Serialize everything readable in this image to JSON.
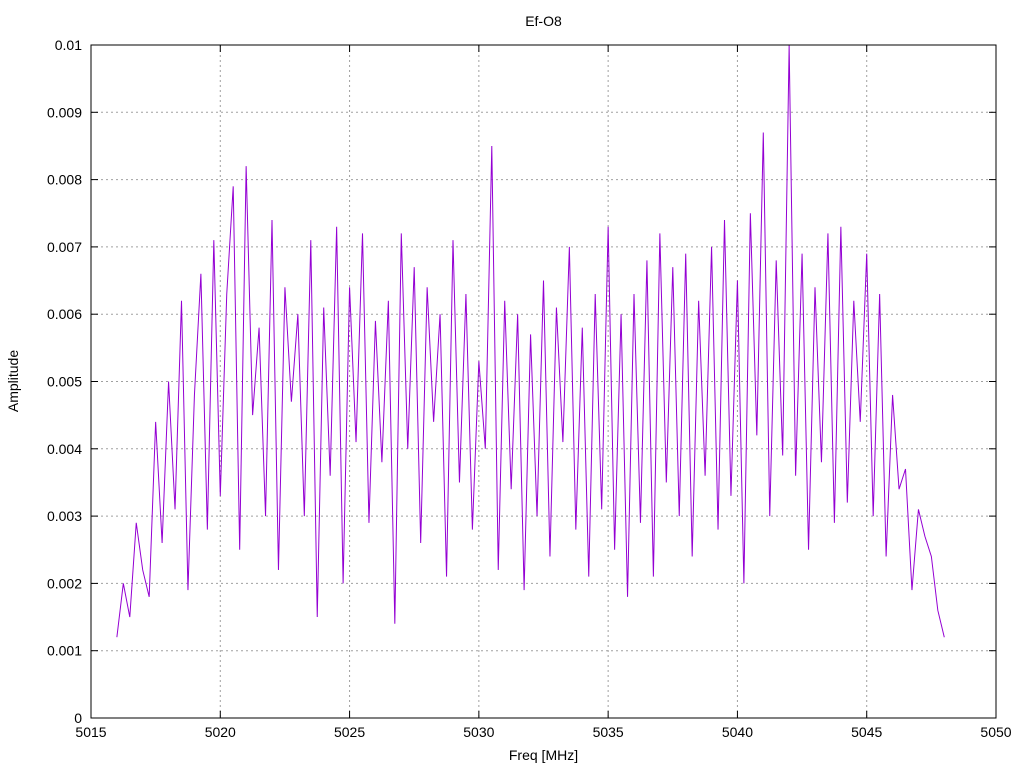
{
  "chart_data": {
    "type": "line",
    "title": "Ef-O8",
    "xlabel": "Freq [MHz]",
    "ylabel": "Amplitude",
    "xlim": [
      5015,
      5050
    ],
    "ylim": [
      0,
      0.01
    ],
    "x_ticks": [
      "5015",
      "5020",
      "5025",
      "5030",
      "5035",
      "5040",
      "5045",
      "5050"
    ],
    "y_ticks": [
      "0",
      "0.001",
      "0.002",
      "0.003",
      "0.004",
      "0.005",
      "0.006",
      "0.007",
      "0.008",
      "0.009",
      "0.01"
    ],
    "grid": true,
    "series": [
      {
        "color": "#9400D3",
        "x": [
          5016.0,
          5016.25,
          5016.5,
          5016.75,
          5017.0,
          5017.25,
          5017.5,
          5017.75,
          5018.0,
          5018.25,
          5018.5,
          5018.75,
          5019.0,
          5019.25,
          5019.5,
          5019.75,
          5020.0,
          5020.25,
          5020.5,
          5020.75,
          5021.0,
          5021.25,
          5021.5,
          5021.75,
          5022.0,
          5022.25,
          5022.5,
          5022.75,
          5023.0,
          5023.25,
          5023.5,
          5023.75,
          5024.0,
          5024.25,
          5024.5,
          5024.75,
          5025.0,
          5025.25,
          5025.5,
          5025.75,
          5026.0,
          5026.25,
          5026.5,
          5026.75,
          5027.0,
          5027.25,
          5027.5,
          5027.75,
          5028.0,
          5028.25,
          5028.5,
          5028.75,
          5029.0,
          5029.25,
          5029.5,
          5029.75,
          5030.0,
          5030.25,
          5030.5,
          5030.75,
          5031.0,
          5031.25,
          5031.5,
          5031.75,
          5032.0,
          5032.25,
          5032.5,
          5032.75,
          5033.0,
          5033.25,
          5033.5,
          5033.75,
          5034.0,
          5034.25,
          5034.5,
          5034.75,
          5035.0,
          5035.25,
          5035.5,
          5035.75,
          5036.0,
          5036.25,
          5036.5,
          5036.75,
          5037.0,
          5037.25,
          5037.5,
          5037.75,
          5038.0,
          5038.25,
          5038.5,
          5038.75,
          5039.0,
          5039.25,
          5039.5,
          5039.75,
          5040.0,
          5040.25,
          5040.5,
          5040.75,
          5041.0,
          5041.25,
          5041.5,
          5041.75,
          5042.0,
          5042.25,
          5042.5,
          5042.75,
          5043.0,
          5043.25,
          5043.5,
          5043.75,
          5044.0,
          5044.25,
          5044.5,
          5044.75,
          5045.0,
          5045.25,
          5045.5,
          5045.75,
          5046.0,
          5046.25,
          5046.5,
          5046.75,
          5047.0,
          5047.25,
          5047.5,
          5047.75,
          5048.0
        ],
        "y": [
          0.0012,
          0.002,
          0.0015,
          0.0029,
          0.0022,
          0.0018,
          0.0044,
          0.0026,
          0.005,
          0.0031,
          0.0062,
          0.0019,
          0.0048,
          0.0066,
          0.0028,
          0.0071,
          0.0033,
          0.0063,
          0.0079,
          0.0025,
          0.0082,
          0.0045,
          0.0058,
          0.003,
          0.0074,
          0.0022,
          0.0064,
          0.0047,
          0.006,
          0.003,
          0.0071,
          0.0015,
          0.0061,
          0.0036,
          0.0073,
          0.002,
          0.0064,
          0.0041,
          0.0072,
          0.0029,
          0.0059,
          0.0038,
          0.0062,
          0.0014,
          0.0072,
          0.004,
          0.0067,
          0.0026,
          0.0064,
          0.0044,
          0.006,
          0.0021,
          0.0071,
          0.0035,
          0.0063,
          0.0028,
          0.0053,
          0.004,
          0.0085,
          0.0022,
          0.0062,
          0.0034,
          0.006,
          0.0019,
          0.0057,
          0.003,
          0.0065,
          0.0024,
          0.0061,
          0.0041,
          0.007,
          0.0028,
          0.0058,
          0.0021,
          0.0063,
          0.0031,
          0.0073,
          0.0025,
          0.006,
          0.0018,
          0.0063,
          0.0029,
          0.0068,
          0.0021,
          0.0072,
          0.0035,
          0.0067,
          0.003,
          0.0069,
          0.0024,
          0.0062,
          0.0036,
          0.007,
          0.0028,
          0.0074,
          0.0033,
          0.0065,
          0.002,
          0.0075,
          0.0042,
          0.0087,
          0.003,
          0.0068,
          0.0039,
          0.01,
          0.0036,
          0.0069,
          0.0025,
          0.0064,
          0.0038,
          0.0072,
          0.0029,
          0.0073,
          0.0032,
          0.0062,
          0.0044,
          0.0069,
          0.003,
          0.0063,
          0.0024,
          0.0048,
          0.0034,
          0.0037,
          0.0019,
          0.0031,
          0.0027,
          0.0024,
          0.0016,
          0.0012
        ]
      }
    ]
  }
}
